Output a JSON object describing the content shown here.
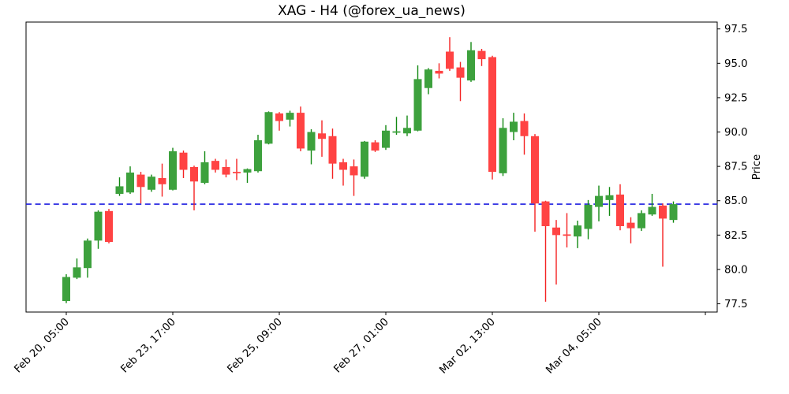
{
  "title": "XAG - H4 (@forex_ua_news)",
  "chart_data": {
    "type": "candlestick",
    "symbol": "XAG",
    "timeframe": "H4",
    "source_handle": "@forex_ua_news",
    "ylabel": "Price",
    "ylim": [
      76.9,
      98.0
    ],
    "y_ticks": [
      77.5,
      80.0,
      82.5,
      85.0,
      87.5,
      90.0,
      92.5,
      95.0,
      97.5
    ],
    "x_tick_positions": [
      0,
      10,
      20,
      30,
      40,
      50,
      60
    ],
    "x_tick_labels": [
      "Feb 20, 05:00",
      "Feb 23, 17:00",
      "Feb 25, 09:00",
      "Feb 27, 01:00",
      "Mar 02, 13:00",
      "Mar 04, 05:00",
      ""
    ],
    "grid": false,
    "legend": "none",
    "hline": {
      "price": 84.75,
      "color": "#1d1de0",
      "style": "dashed"
    },
    "colors": {
      "up_body": "#3da13d",
      "up_wick": "#128912",
      "down_body": "#ff4343",
      "down_wick": "#f42222"
    },
    "candles_ohlc": [
      [
        77.7,
        79.65,
        77.55,
        79.45
      ],
      [
        79.4,
        80.8,
        79.3,
        80.15
      ],
      [
        80.1,
        82.25,
        79.4,
        82.1
      ],
      [
        82.1,
        84.3,
        81.5,
        84.2
      ],
      [
        84.25,
        84.4,
        81.9,
        82.0
      ],
      [
        85.5,
        86.7,
        85.35,
        86.05
      ],
      [
        85.6,
        87.5,
        85.5,
        87.05
      ],
      [
        86.9,
        87.1,
        84.8,
        86.0
      ],
      [
        85.8,
        86.9,
        85.65,
        86.75
      ],
      [
        86.65,
        87.7,
        85.3,
        86.2
      ],
      [
        85.8,
        88.85,
        85.75,
        88.6
      ],
      [
        88.5,
        88.65,
        86.65,
        87.25
      ],
      [
        87.45,
        87.55,
        84.3,
        86.4
      ],
      [
        86.3,
        88.6,
        86.2,
        87.8
      ],
      [
        87.9,
        88.05,
        87.05,
        87.25
      ],
      [
        87.45,
        88.0,
        86.7,
        86.9
      ],
      [
        87.1,
        88.05,
        86.5,
        87.0
      ],
      [
        87.05,
        87.35,
        86.3,
        87.3
      ],
      [
        87.15,
        89.8,
        87.05,
        89.4
      ],
      [
        89.15,
        91.5,
        89.1,
        91.45
      ],
      [
        91.35,
        91.45,
        90.1,
        90.8
      ],
      [
        90.9,
        91.55,
        90.4,
        91.4
      ],
      [
        91.4,
        91.85,
        88.6,
        88.8
      ],
      [
        88.65,
        90.2,
        87.65,
        90.0
      ],
      [
        89.9,
        90.85,
        88.2,
        89.5
      ],
      [
        89.7,
        90.25,
        86.6,
        87.7
      ],
      [
        87.8,
        88.05,
        86.1,
        87.25
      ],
      [
        87.5,
        88.0,
        85.35,
        86.85
      ],
      [
        86.75,
        89.35,
        86.6,
        89.3
      ],
      [
        89.25,
        89.4,
        88.55,
        88.65
      ],
      [
        88.85,
        90.5,
        88.7,
        90.1
      ],
      [
        89.95,
        91.1,
        89.8,
        90.05
      ],
      [
        89.9,
        91.2,
        89.7,
        90.3
      ],
      [
        90.1,
        94.85,
        90.05,
        93.85
      ],
      [
        93.2,
        94.65,
        92.75,
        94.55
      ],
      [
        94.45,
        95.0,
        93.9,
        94.25
      ],
      [
        95.85,
        96.9,
        94.45,
        94.6
      ],
      [
        94.7,
        95.1,
        92.25,
        93.95
      ],
      [
        93.75,
        96.55,
        93.65,
        95.95
      ],
      [
        95.9,
        96.05,
        94.8,
        95.3
      ],
      [
        95.45,
        95.55,
        86.55,
        87.1
      ],
      [
        87.0,
        91.0,
        86.8,
        90.3
      ],
      [
        90.0,
        91.4,
        89.4,
        90.75
      ],
      [
        90.8,
        91.35,
        88.35,
        89.7
      ],
      [
        89.7,
        89.85,
        82.75,
        84.8
      ],
      [
        84.95,
        85.0,
        77.65,
        83.15
      ],
      [
        83.05,
        83.6,
        78.9,
        82.5
      ],
      [
        82.55,
        84.1,
        81.6,
        82.45
      ],
      [
        82.4,
        83.55,
        81.55,
        83.2
      ],
      [
        82.95,
        85.05,
        82.2,
        84.7
      ],
      [
        84.55,
        86.1,
        83.5,
        85.35
      ],
      [
        85.05,
        86.0,
        83.9,
        85.4
      ],
      [
        85.45,
        86.2,
        82.85,
        83.15
      ],
      [
        83.4,
        83.8,
        81.9,
        83.0
      ],
      [
        83.0,
        84.3,
        82.8,
        84.1
      ],
      [
        84.0,
        85.5,
        83.9,
        84.55
      ],
      [
        84.65,
        84.8,
        80.2,
        83.7
      ],
      [
        83.6,
        84.95,
        83.4,
        84.75
      ]
    ]
  }
}
